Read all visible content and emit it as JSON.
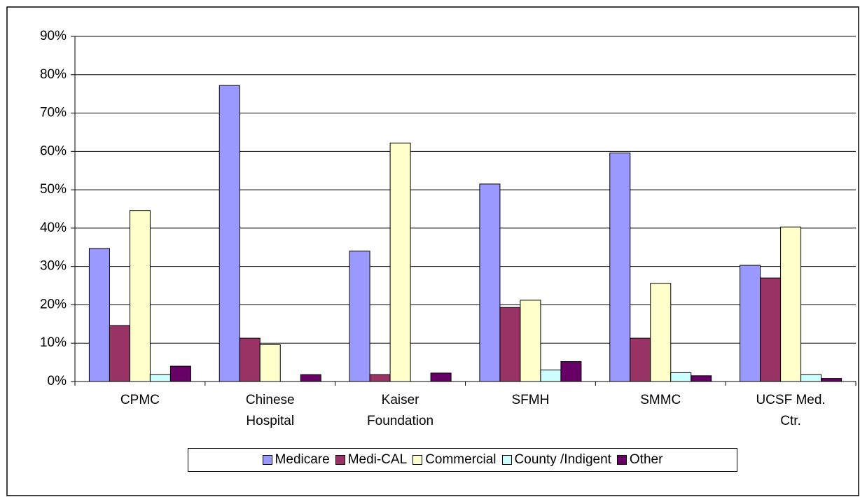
{
  "chart_data": {
    "type": "bar",
    "categories": [
      "CPMC",
      "Chinese Hospital",
      "Kaiser Foundation",
      "SFMH",
      "SMMC",
      "UCSF Med. Ctr."
    ],
    "series": [
      {
        "name": "Medicare",
        "color": "#9999ff",
        "values": [
          34.7,
          77.2,
          34.0,
          51.5,
          59.6,
          30.3
        ]
      },
      {
        "name": "Medi-CAL",
        "color": "#993366",
        "values": [
          14.6,
          11.3,
          1.8,
          19.3,
          11.3,
          27.0
        ]
      },
      {
        "name": "Commercial",
        "color": "#ffffcc",
        "values": [
          44.6,
          9.6,
          62.2,
          21.2,
          25.6,
          40.3
        ]
      },
      {
        "name": "County /Indigent",
        "color": "#ccffff",
        "values": [
          1.8,
          0,
          0,
          3.0,
          2.3,
          1.8
        ]
      },
      {
        "name": "Other",
        "color": "#660066",
        "values": [
          4.0,
          1.8,
          2.2,
          5.2,
          1.5,
          0.8
        ]
      }
    ],
    "ylim": [
      0,
      90
    ],
    "yticks": [
      {
        "value": 0,
        "label": "0%"
      },
      {
        "value": 10,
        "label": "10%"
      },
      {
        "value": 20,
        "label": "20%"
      },
      {
        "value": 30,
        "label": "30%"
      },
      {
        "value": 40,
        "label": "40%"
      },
      {
        "value": 50,
        "label": "50%"
      },
      {
        "value": 60,
        "label": "60%"
      },
      {
        "value": 70,
        "label": "70%"
      },
      {
        "value": 80,
        "label": "80%"
      },
      {
        "value": 90,
        "label": "90%"
      }
    ],
    "grid": true,
    "legend": "bottom"
  }
}
